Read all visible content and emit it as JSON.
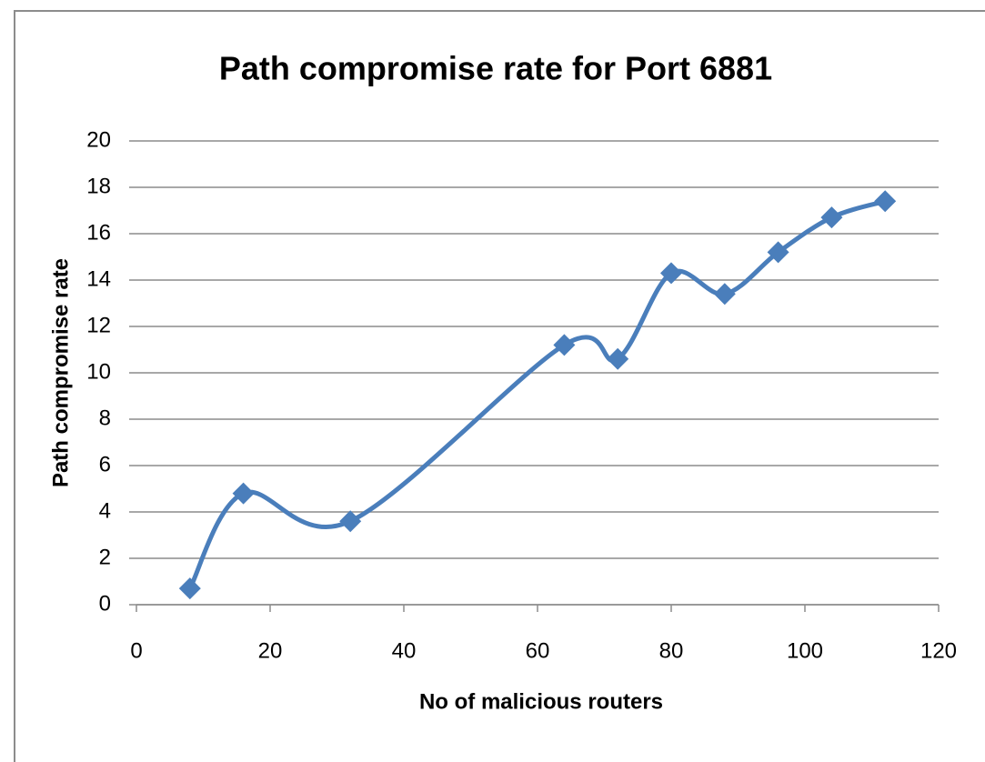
{
  "chart_data": {
    "type": "line",
    "title": "Path compromise rate for Port 6881",
    "x_label": "No of malicious routers",
    "y_label": "Path compromise rate",
    "x": [
      8,
      16,
      32,
      64,
      72,
      80,
      88,
      96,
      104,
      112
    ],
    "series": [
      {
        "name": "Path compromise rate",
        "color": "#4a7ebb",
        "values": [
          0.7,
          4.8,
          3.6,
          11.2,
          10.6,
          14.3,
          13.4,
          15.2,
          16.7,
          17.4
        ]
      }
    ],
    "xlim": [
      0,
      120
    ],
    "xticks": [
      0,
      20,
      40,
      60,
      80,
      100,
      120
    ],
    "ylim": [
      0,
      20
    ],
    "yticks": [
      0,
      2,
      4,
      6,
      8,
      10,
      12,
      14,
      16,
      18,
      20
    ],
    "grid": true,
    "smooth": true
  }
}
